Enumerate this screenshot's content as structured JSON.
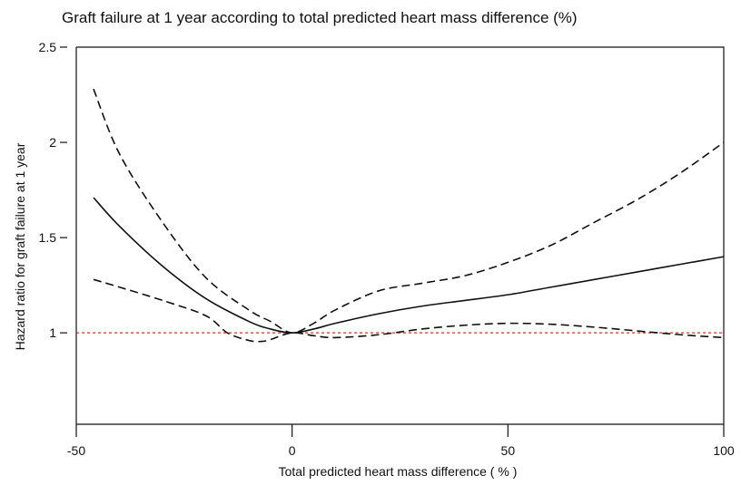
{
  "chart_data": {
    "type": "line",
    "title": "Graft failure at 1 year according to total predicted heart mass difference (%)",
    "xlabel": "Total predicted heart mass difference ( % )",
    "ylabel": "Hazard ratio for graft failure at 1 year",
    "xlim": [
      -50,
      100
    ],
    "ylim": [
      0.52,
      2.5
    ],
    "x_ticks": [
      -50,
      0,
      50,
      100
    ],
    "y_ticks": [
      1,
      1.5,
      2,
      2.5
    ],
    "x_tick_labels": [
      "-50",
      "0",
      "50",
      "100"
    ],
    "y_tick_labels": [
      "1",
      "1.5",
      "2",
      "2.5"
    ],
    "grid": false,
    "reference_line": {
      "y": 1,
      "color": "#c0392b",
      "style": "dotted"
    },
    "series": [
      {
        "role": "estimate",
        "style": "solid",
        "color": "#111111",
        "x": [
          -46,
          -40,
          -30,
          -20,
          -10,
          -5,
          0,
          5,
          10,
          20,
          30,
          40,
          50,
          60,
          70,
          80,
          90,
          100
        ],
        "y": [
          1.71,
          1.56,
          1.35,
          1.18,
          1.06,
          1.02,
          1.0,
          1.02,
          1.05,
          1.1,
          1.14,
          1.17,
          1.2,
          1.24,
          1.28,
          1.32,
          1.36,
          1.4
        ]
      },
      {
        "role": "upper-ci",
        "style": "dashed",
        "color": "#111111",
        "x": [
          -46,
          -40,
          -30,
          -20,
          -10,
          -5,
          0,
          5,
          10,
          20,
          30,
          40,
          50,
          60,
          70,
          80,
          90,
          100
        ],
        "y": [
          2.28,
          1.94,
          1.58,
          1.29,
          1.12,
          1.06,
          1.0,
          1.05,
          1.12,
          1.22,
          1.26,
          1.3,
          1.37,
          1.46,
          1.58,
          1.7,
          1.84,
          2.0
        ]
      },
      {
        "role": "lower-ci",
        "style": "dashed",
        "color": "#111111",
        "x": [
          -46,
          -40,
          -30,
          -20,
          -15,
          -10,
          -7,
          -5,
          0,
          5,
          10,
          20,
          30,
          40,
          50,
          60,
          70,
          80,
          90,
          100
        ],
        "y": [
          1.28,
          1.24,
          1.17,
          1.09,
          1.0,
          0.96,
          0.955,
          0.965,
          1.0,
          0.985,
          0.975,
          0.99,
          1.02,
          1.04,
          1.05,
          1.045,
          1.03,
          1.01,
          0.99,
          0.975
        ]
      }
    ]
  }
}
